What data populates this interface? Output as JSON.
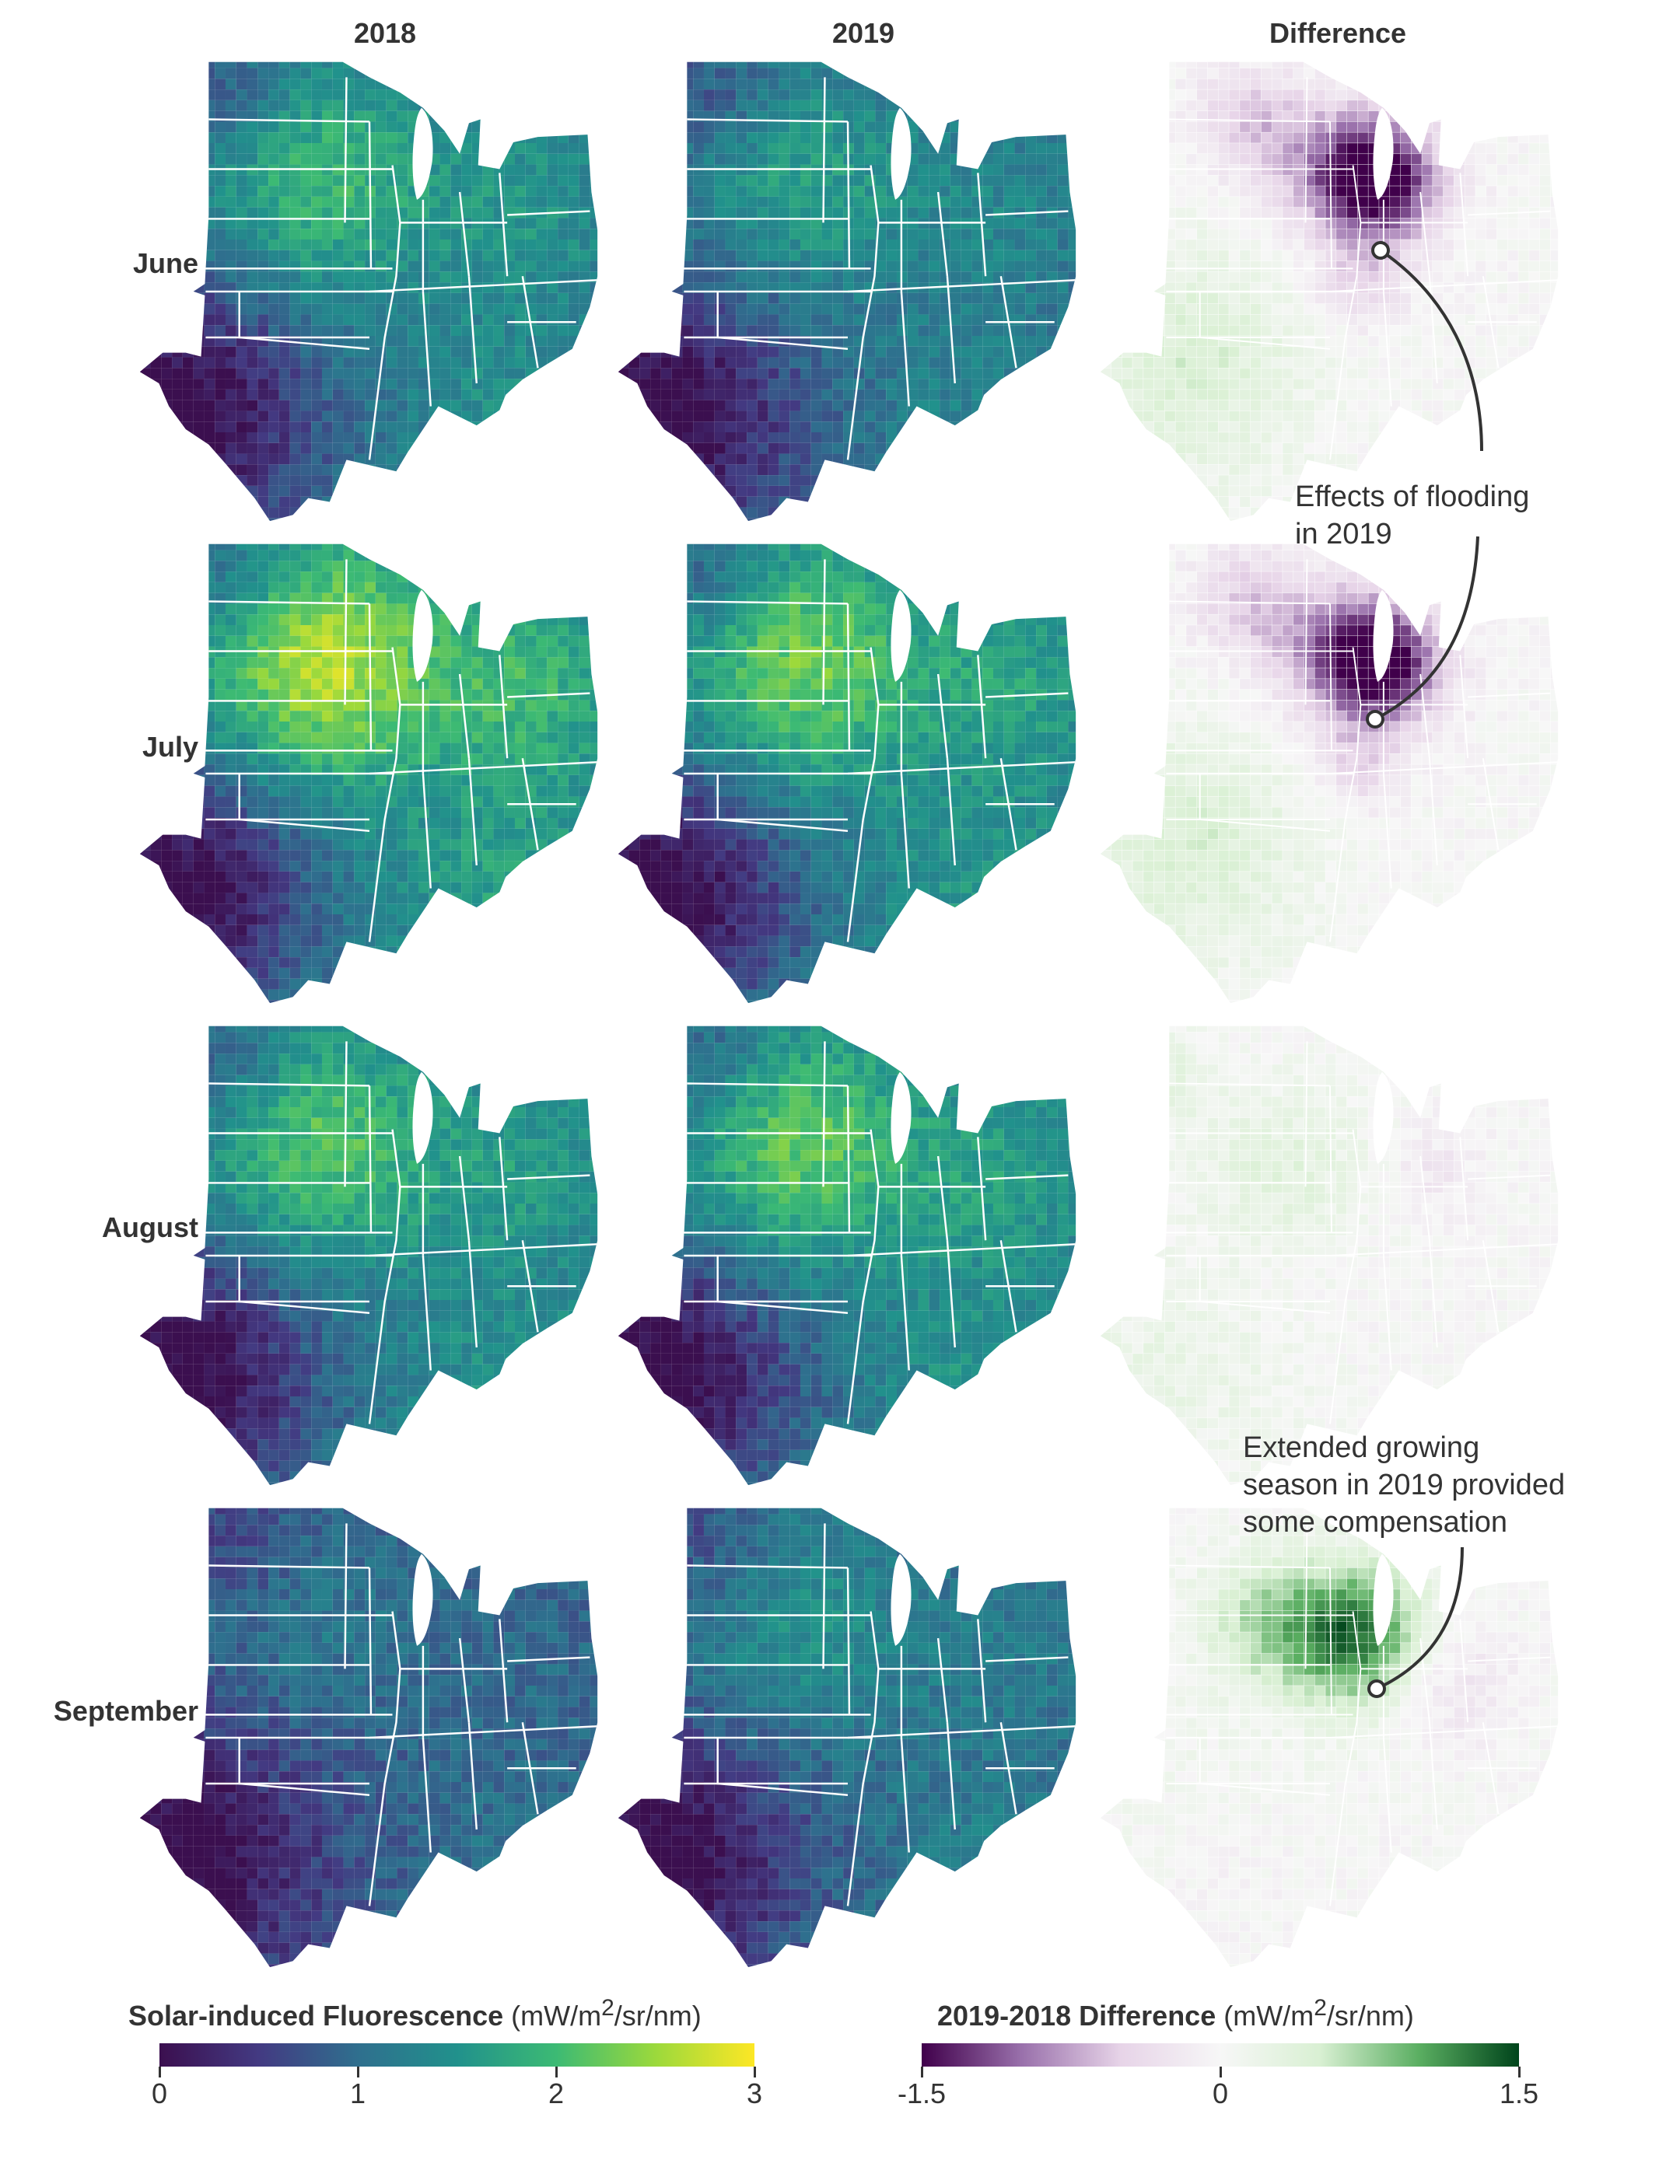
{
  "columns": [
    "2018",
    "2019",
    "Difference"
  ],
  "rows": [
    {
      "label": "June",
      "sif_2018_level": 0.55,
      "sif_2019_level": 0.45,
      "diff_focus": "flood"
    },
    {
      "label": "July",
      "sif_2018_level": 0.75,
      "sif_2019_level": 0.65,
      "diff_focus": "flood"
    },
    {
      "label": "August",
      "sif_2018_level": 0.6,
      "sif_2019_level": 0.62,
      "diff_focus": "mixed"
    },
    {
      "label": "September",
      "sif_2018_level": 0.25,
      "sif_2019_level": 0.38,
      "diff_focus": "compensation"
    }
  ],
  "annotations": {
    "flooding": [
      "Effects of flooding",
      "in 2019"
    ],
    "compensation": [
      "Extended growing",
      "season in 2019 provided",
      "some compensation"
    ]
  },
  "legend_sif": {
    "title_bold": "Solar-induced Fluorescence",
    "unit_html": "(mW/m<sup>2</sup>/sr/nm)",
    "ticks": [
      "0",
      "1",
      "2",
      "3"
    ],
    "min": 0,
    "max": 3,
    "colors": [
      "#3b0f4f",
      "#433a82",
      "#2f6f8e",
      "#21918c",
      "#3cba74",
      "#9bd93c",
      "#fde725"
    ]
  },
  "legend_diff": {
    "title_bold": "2019-2018 Difference",
    "unit_html": "(mW/m<sup>2</sup>/sr/nm)",
    "ticks": [
      "-1.5",
      "0",
      "1.5"
    ],
    "min": -1.5,
    "max": 1.5,
    "colors": [
      "#40004b",
      "#9970ab",
      "#e7d4e8",
      "#f7f7f7",
      "#d9f0d3",
      "#5aae61",
      "#00441b"
    ]
  }
}
